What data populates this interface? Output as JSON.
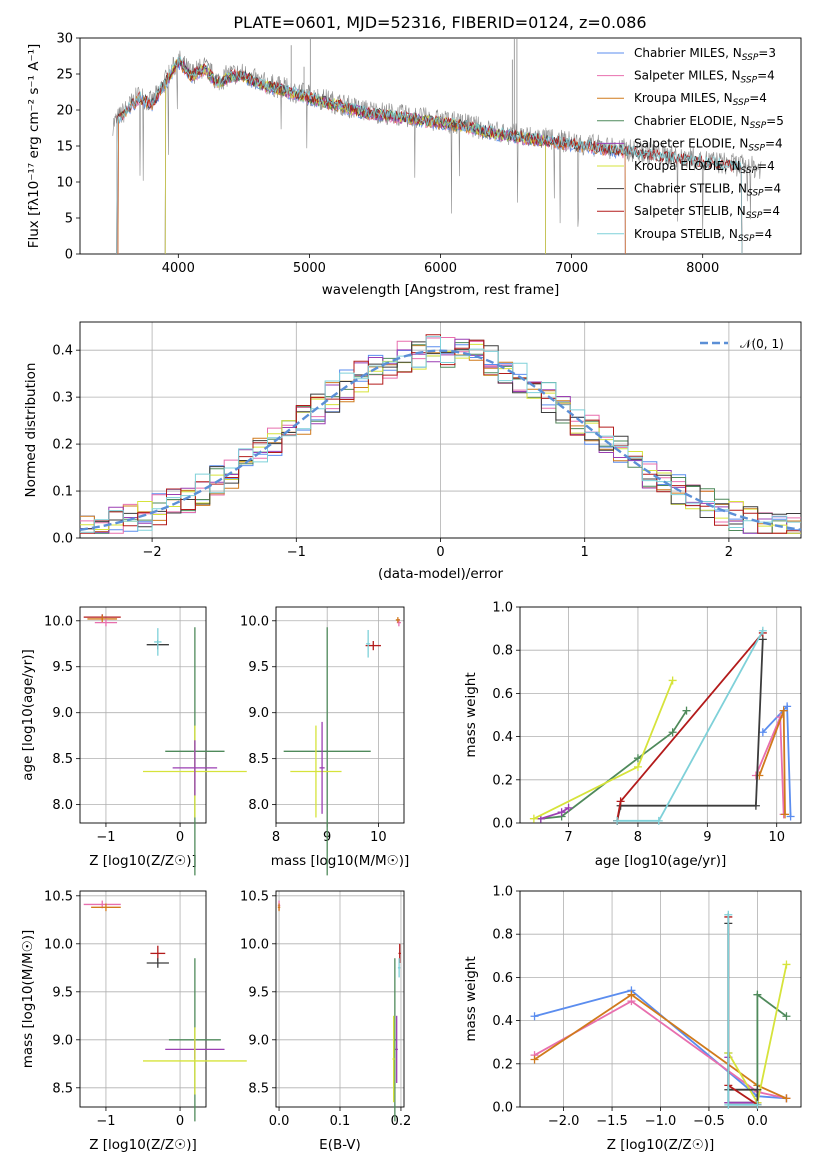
{
  "title": "PLATE=0601, MJD=52316, FIBERID=0124, z=0.086",
  "colors": {
    "chabrier_miles": "#5b8def",
    "salpeter_miles": "#e86fae",
    "kroupa_miles": "#d07a1c",
    "chabrier_elodie": "#4f8a5b",
    "salpeter_elodie": "#9b3fb3",
    "kroupa_elodie": "#d6e33b",
    "chabrier_stelib": "#3c3c3c",
    "salpeter_stelib": "#b31b1b",
    "kroupa_stelib": "#7fd1d9",
    "data": "#8a8a8a"
  },
  "legend": [
    {
      "text": "Chabrier MILES, N",
      "sub": "SSP",
      "tail": "=3",
      "key": "chabrier_miles"
    },
    {
      "text": "Salpeter MILES, N",
      "sub": "SSP",
      "tail": "=4",
      "key": "salpeter_miles"
    },
    {
      "text": "Kroupa MILES, N",
      "sub": "SSP",
      "tail": "=4",
      "key": "kroupa_miles"
    },
    {
      "text": "Chabrier ELODIE, N",
      "sub": "SSP",
      "tail": "=5",
      "key": "chabrier_elodie"
    },
    {
      "text": "Salpeter ELODIE, N",
      "sub": "SSP",
      "tail": "=4",
      "key": "salpeter_elodie"
    },
    {
      "text": "Kroupa ELODIE, N",
      "sub": "SSP",
      "tail": "=4",
      "key": "kroupa_elodie"
    },
    {
      "text": "Chabrier STELIB, N",
      "sub": "SSP",
      "tail": "=4",
      "key": "chabrier_stelib"
    },
    {
      "text": "Salpeter STELIB, N",
      "sub": "SSP",
      "tail": "=4",
      "key": "salpeter_stelib"
    },
    {
      "text": "Kroupa STELIB, N",
      "sub": "SSP",
      "tail": "=4",
      "key": "kroupa_stelib"
    }
  ],
  "chart_data": [
    {
      "type": "line",
      "panel": "spectrum",
      "xlabel": "wavelength [Angstrom, rest frame]",
      "ylabel": "Flux [fλ10⁻¹⁷ erg cm⁻² s⁻¹ A⁻¹]",
      "xlim": [
        3250,
        8750
      ],
      "ylim": [
        0,
        30
      ],
      "xticks": [
        "4000",
        "5000",
        "6000",
        "7000",
        "8000"
      ],
      "yticks": [
        "0",
        "5",
        "10",
        "15",
        "20",
        "25",
        "30"
      ],
      "data_continuum": {
        "x": [
          3500,
          3600,
          3700,
          3800,
          3900,
          4000,
          4100,
          4200,
          4300,
          4400,
          4500,
          4600,
          4800,
          5000,
          5200,
          5400,
          5600,
          5800,
          6000,
          6200,
          6400,
          6600,
          6800,
          7000,
          7200,
          7400,
          7600,
          7800,
          8000,
          8200,
          8400
        ],
        "y": [
          18,
          20,
          22,
          21,
          24,
          27,
          25,
          26,
          24,
          25,
          25,
          24,
          23,
          22,
          21,
          20,
          19.5,
          19,
          18.5,
          18,
          17,
          16.5,
          16,
          15.5,
          15,
          14.5,
          14,
          13.5,
          13,
          12.5,
          12
        ]
      }
    },
    {
      "type": "bar",
      "panel": "residual-histogram",
      "xlabel": "(data-model)/error",
      "ylabel": "Normed distribution",
      "xlim": [
        -2.5,
        2.5
      ],
      "ylim": [
        0,
        0.46
      ],
      "xticks": [
        "−2",
        "−1",
        "0",
        "1",
        "2"
      ],
      "yticks": [
        "0.0",
        "0.1",
        "0.2",
        "0.3",
        "0.4"
      ],
      "reference_label": "𝒩(0, 1)",
      "reference_curve": {
        "mu": 0,
        "sigma": 1
      }
    },
    {
      "type": "scatter",
      "panel": "age-vs-Z",
      "xlabel": "Z [log10(Z/Z☉)]",
      "ylabel": "age  [log10(age/yr)]",
      "xlim": [
        -1.35,
        0.35
      ],
      "ylim": [
        7.8,
        10.15
      ],
      "xticks": [
        "−1",
        "0"
      ],
      "yticks": [
        "8.0",
        "8.5",
        "9.0",
        "9.5",
        "10.0"
      ],
      "points": [
        {
          "key": "salpeter_stelib",
          "x": -1.05,
          "y": 10.04,
          "xerr": 0.25,
          "yerr": 0.03
        },
        {
          "key": "kroupa_miles",
          "x": -1.05,
          "y": 10.02,
          "xerr": 0.2,
          "yerr": 0.04
        },
        {
          "key": "salpeter_miles",
          "x": -1.0,
          "y": 9.98,
          "xerr": 0.15,
          "yerr": 0.04
        },
        {
          "key": "chabrier_stelib",
          "x": -0.3,
          "y": 9.74,
          "xerr": 0.15,
          "yerr": 0.05
        },
        {
          "key": "kroupa_stelib",
          "x": -0.3,
          "y": 9.77,
          "xerr": 0.05,
          "yerr": 0.15
        },
        {
          "key": "chabrier_elodie",
          "x": 0.2,
          "y": 8.58,
          "xerr": 0.4,
          "yerr": 1.35
        },
        {
          "key": "kroupa_elodie",
          "x": 0.2,
          "y": 8.36,
          "xerr": 0.7,
          "yerr": 0.5
        },
        {
          "key": "salpeter_elodie",
          "x": 0.2,
          "y": 8.4,
          "xerr": 0.3,
          "yerr": 0.3
        }
      ]
    },
    {
      "type": "scatter",
      "panel": "age-vs-mass",
      "xlabel": "mass [log10(M/M☉)]",
      "ylabel": "",
      "xlim": [
        8.0,
        10.5
      ],
      "ylim": [
        7.8,
        10.15
      ],
      "xticks": [
        "8",
        "9",
        "10"
      ],
      "yticks": [
        "8.0",
        "8.5",
        "9.0",
        "9.5",
        "10.0"
      ],
      "points": [
        {
          "key": "salpeter_miles",
          "x": 10.4,
          "y": 9.98,
          "xerr": 0.04,
          "yerr": 0.04
        },
        {
          "key": "kroupa_miles",
          "x": 10.38,
          "y": 10.01,
          "xerr": 0.04,
          "yerr": 0.03
        },
        {
          "key": "salpeter_stelib",
          "x": 9.9,
          "y": 9.73,
          "xerr": 0.15,
          "yerr": 0.05
        },
        {
          "key": "kroupa_stelib",
          "x": 9.8,
          "y": 9.75,
          "xerr": 0.04,
          "yerr": 0.15
        },
        {
          "key": "chabrier_elodie",
          "x": 9.0,
          "y": 8.58,
          "xerr": 0.85,
          "yerr": 1.35
        },
        {
          "key": "kroupa_elodie",
          "x": 8.78,
          "y": 8.36,
          "xerr": 0.5,
          "yerr": 0.5
        },
        {
          "key": "salpeter_elodie",
          "x": 8.9,
          "y": 8.4,
          "xerr": 0.05,
          "yerr": 0.5
        }
      ]
    },
    {
      "type": "line",
      "panel": "mass-weight-vs-age",
      "xlabel": "age  [log10(age/yr)]",
      "ylabel": "mass weight",
      "xlim": [
        6.3,
        10.35
      ],
      "ylim": [
        0,
        1.0
      ],
      "xticks": [
        "7",
        "8",
        "9",
        "10"
      ],
      "yticks": [
        "0.0",
        "0.2",
        "0.4",
        "0.6",
        "0.8",
        "1.0"
      ],
      "series": [
        {
          "key": "chabrier_miles",
          "x": [
            9.8,
            10.15,
            10.2
          ],
          "y": [
            0.42,
            0.54,
            0.03
          ]
        },
        {
          "key": "salpeter_miles",
          "x": [
            9.7,
            10.05,
            10.1
          ],
          "y": [
            0.22,
            0.49,
            0.04
          ]
        },
        {
          "key": "kroupa_miles",
          "x": [
            9.75,
            10.1,
            10.12
          ],
          "y": [
            0.22,
            0.52,
            0.04
          ]
        },
        {
          "key": "chabrier_elodie",
          "x": [
            6.6,
            6.9,
            8.0,
            8.5,
            8.7
          ],
          "y": [
            0.02,
            0.03,
            0.3,
            0.42,
            0.52
          ]
        },
        {
          "key": "salpeter_elodie",
          "x": [
            6.6,
            6.9,
            7.0
          ],
          "y": [
            0.02,
            0.05,
            0.07
          ]
        },
        {
          "key": "kroupa_elodie",
          "x": [
            6.5,
            8.0,
            8.5
          ],
          "y": [
            0.02,
            0.26,
            0.66
          ]
        },
        {
          "key": "chabrier_stelib",
          "x": [
            7.7,
            7.75,
            9.7,
            9.8
          ],
          "y": [
            0.01,
            0.08,
            0.08,
            0.85
          ]
        },
        {
          "key": "salpeter_stelib",
          "x": [
            7.7,
            7.75,
            9.8
          ],
          "y": [
            0.01,
            0.1,
            0.88
          ]
        },
        {
          "key": "kroupa_stelib",
          "x": [
            7.7,
            8.3,
            9.8
          ],
          "y": [
            0.01,
            0.01,
            0.89
          ]
        }
      ]
    },
    {
      "type": "scatter",
      "panel": "mass-vs-Z",
      "xlabel": "Z [log10(Z/Z☉)]",
      "ylabel": "mass [log10(M/M☉)]",
      "xlim": [
        -1.35,
        0.35
      ],
      "ylim": [
        8.3,
        10.55
      ],
      "xticks": [
        "−1",
        "0"
      ],
      "yticks": [
        "8.5",
        "9.0",
        "9.5",
        "10.0",
        "10.5"
      ],
      "points": [
        {
          "key": "salpeter_miles",
          "x": -1.05,
          "y": 10.41,
          "xerr": 0.25,
          "yerr": 0.04
        },
        {
          "key": "kroupa_miles",
          "x": -1.0,
          "y": 10.38,
          "xerr": 0.2,
          "yerr": 0.04
        },
        {
          "key": "salpeter_stelib",
          "x": -0.3,
          "y": 9.9,
          "xerr": 0.1,
          "yerr": 0.08
        },
        {
          "key": "chabrier_stelib",
          "x": -0.3,
          "y": 9.8,
          "xerr": 0.15,
          "yerr": 0.05
        },
        {
          "key": "chabrier_elodie",
          "x": 0.2,
          "y": 9.0,
          "xerr": 0.35,
          "yerr": 0.85
        },
        {
          "key": "salpeter_elodie",
          "x": 0.2,
          "y": 8.9,
          "xerr": 0.4,
          "yerr": 0.1
        },
        {
          "key": "kroupa_elodie",
          "x": 0.2,
          "y": 8.78,
          "xerr": 0.7,
          "yerr": 0.35
        }
      ]
    },
    {
      "type": "scatter",
      "panel": "mass-vs-EBV",
      "xlabel": "E(B-V)",
      "ylabel": "",
      "xlim": [
        -0.005,
        0.205
      ],
      "ylim": [
        8.3,
        10.55
      ],
      "xticks": [
        "0.0",
        "0.1",
        "0.2"
      ],
      "yticks": [
        "8.5",
        "9.0",
        "9.5",
        "10.0",
        "10.5"
      ],
      "points": [
        {
          "key": "salpeter_miles",
          "x": 0.0,
          "y": 10.4,
          "xerr": 0.002,
          "yerr": 0.05
        },
        {
          "key": "kroupa_miles",
          "x": 0.0,
          "y": 10.38,
          "xerr": 0.002,
          "yerr": 0.04
        },
        {
          "key": "salpeter_stelib",
          "x": 0.198,
          "y": 9.9,
          "xerr": 0.002,
          "yerr": 0.1
        },
        {
          "key": "kroupa_stelib",
          "x": 0.197,
          "y": 9.75,
          "xerr": 0.002,
          "yerr": 0.1
        },
        {
          "key": "chabrier_elodie",
          "x": 0.19,
          "y": 9.0,
          "xerr": 0.002,
          "yerr": 0.85
        },
        {
          "key": "salpeter_elodie",
          "x": 0.193,
          "y": 8.9,
          "xerr": 0.002,
          "yerr": 0.35
        },
        {
          "key": "kroupa_elodie",
          "x": 0.188,
          "y": 8.8,
          "xerr": 0.002,
          "yerr": 0.45
        }
      ]
    },
    {
      "type": "line",
      "panel": "mass-weight-vs-Z",
      "xlabel": "Z [log10(Z/Z☉)]",
      "ylabel": "mass weight",
      "xlim": [
        -2.45,
        0.45
      ],
      "ylim": [
        0,
        1.0
      ],
      "xticks": [
        "−2.0",
        "−1.5",
        "−1.0",
        "−0.5",
        "0.0"
      ],
      "yticks": [
        "0.0",
        "0.2",
        "0.4",
        "0.6",
        "0.8",
        "1.0"
      ],
      "series": [
        {
          "key": "chabrier_miles",
          "x": [
            -2.3,
            -1.3,
            0.0,
            0.3
          ],
          "y": [
            0.42,
            0.54,
            0.05,
            0.04
          ]
        },
        {
          "key": "salpeter_miles",
          "x": [
            -2.3,
            -1.3,
            0.0,
            0.3
          ],
          "y": [
            0.24,
            0.49,
            0.07,
            0.04
          ]
        },
        {
          "key": "kroupa_miles",
          "x": [
            -2.3,
            -1.3,
            0.0,
            0.3
          ],
          "y": [
            0.22,
            0.52,
            0.1,
            0.04
          ]
        },
        {
          "key": "chabrier_elodie",
          "x": [
            -0.3,
            -0.3,
            0.0,
            0.0,
            0.3
          ],
          "y": [
            0.25,
            0.02,
            0.02,
            0.52,
            0.42
          ]
        },
        {
          "key": "salpeter_elodie",
          "x": [
            -0.3,
            -0.3,
            0.0
          ],
          "y": [
            0.23,
            0.02,
            0.02
          ]
        },
        {
          "key": "kroupa_elodie",
          "x": [
            -0.3,
            0.0,
            0.3
          ],
          "y": [
            0.25,
            0.02,
            0.66
          ]
        },
        {
          "key": "chabrier_stelib",
          "x": [
            -0.3,
            -0.3,
            0.0,
            0.0
          ],
          "y": [
            0.85,
            0.08,
            0.08,
            0.01
          ]
        },
        {
          "key": "salpeter_stelib",
          "x": [
            -0.3,
            -0.3,
            0.0
          ],
          "y": [
            0.88,
            0.1,
            0.01
          ]
        },
        {
          "key": "kroupa_stelib",
          "x": [
            -0.3,
            -0.3,
            0.0
          ],
          "y": [
            0.89,
            0.01,
            0.01
          ]
        }
      ]
    }
  ]
}
